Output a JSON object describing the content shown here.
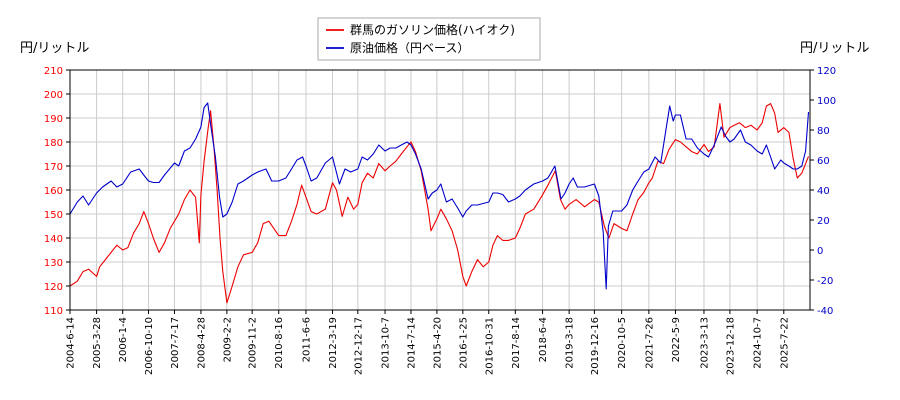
{
  "chart_data": {
    "type": "line",
    "title": "",
    "left_axis": {
      "unit_label": "円/リットル",
      "ylim": [
        110,
        210
      ],
      "ticks": [
        110,
        120,
        130,
        140,
        150,
        160,
        170,
        180,
        190,
        200,
        210
      ],
      "tick_color": "#ff0000"
    },
    "right_axis": {
      "unit_label": "円/リットル",
      "ylim": [
        -40,
        120
      ],
      "ticks": [
        -40,
        -20,
        0,
        20,
        40,
        60,
        80,
        100,
        120
      ],
      "tick_color": "#0000cc"
    },
    "x_ticks": [
      "2004-6-14",
      "2005-3-28",
      "2006-1-4",
      "2006-10-10",
      "2007-7-17",
      "2008-4-28",
      "2009-2-2",
      "2009-11-2",
      "2010-8-16",
      "2011-6-6",
      "2012-3-19",
      "2012-12-17",
      "2013-10-7",
      "2014-7-14",
      "2015-4-20",
      "2016-1-25",
      "2016-10-31",
      "2017-8-14",
      "2018-6-4",
      "2019-3-18",
      "2019-12-16",
      "2020-10-5",
      "2021-7-26",
      "2022-5-9",
      "2023-3-13",
      "2023-12-18",
      "2024-10-7",
      "2025-7-22"
    ],
    "x_range": [
      "2004-06-14",
      "2026-05-01"
    ],
    "grid": true,
    "legend_position": "top-center",
    "series": [
      {
        "name": "群馬のガソリン価格(ハイオク)",
        "color": "#ee0000",
        "axis": "left",
        "points": [
          [
            "2004-06-14",
            120
          ],
          [
            "2004-09-01",
            122
          ],
          [
            "2004-11-01",
            126
          ],
          [
            "2005-01-01",
            127
          ],
          [
            "2005-03-28",
            124
          ],
          [
            "2005-05-01",
            128
          ],
          [
            "2005-07-01",
            131
          ],
          [
            "2005-09-01",
            134
          ],
          [
            "2005-11-01",
            137
          ],
          [
            "2006-01-04",
            135
          ],
          [
            "2006-03-01",
            136
          ],
          [
            "2006-05-01",
            142
          ],
          [
            "2006-07-01",
            146
          ],
          [
            "2006-08-20",
            151
          ],
          [
            "2006-10-10",
            146
          ],
          [
            "2006-12-01",
            140
          ],
          [
            "2007-02-01",
            134
          ],
          [
            "2007-04-01",
            138
          ],
          [
            "2007-06-01",
            144
          ],
          [
            "2007-07-17",
            147
          ],
          [
            "2007-09-01",
            150
          ],
          [
            "2007-11-01",
            156
          ],
          [
            "2008-01-01",
            160
          ],
          [
            "2008-03-01",
            157
          ],
          [
            "2008-04-10",
            138
          ],
          [
            "2008-04-28",
            158
          ],
          [
            "2008-06-01",
            172
          ],
          [
            "2008-07-15",
            186
          ],
          [
            "2008-08-10",
            193
          ],
          [
            "2008-09-15",
            178
          ],
          [
            "2008-10-20",
            160
          ],
          [
            "2008-11-20",
            140
          ],
          [
            "2008-12-20",
            126
          ],
          [
            "2009-02-02",
            113
          ],
          [
            "2009-04-01",
            120
          ],
          [
            "2009-06-01",
            128
          ],
          [
            "2009-08-01",
            133
          ],
          [
            "2009-11-02",
            134
          ],
          [
            "2010-01-01",
            138
          ],
          [
            "2010-03-01",
            146
          ],
          [
            "2010-05-01",
            147
          ],
          [
            "2010-08-16",
            141
          ],
          [
            "2010-11-01",
            141
          ],
          [
            "2011-01-01",
            147
          ],
          [
            "2011-03-01",
            154
          ],
          [
            "2011-04-20",
            162
          ],
          [
            "2011-06-06",
            157
          ],
          [
            "2011-08-01",
            151
          ],
          [
            "2011-10-01",
            150
          ],
          [
            "2012-01-01",
            152
          ],
          [
            "2012-03-19",
            163
          ],
          [
            "2012-05-01",
            160
          ],
          [
            "2012-07-01",
            149
          ],
          [
            "2012-09-01",
            157
          ],
          [
            "2012-11-01",
            152
          ],
          [
            "2012-12-17",
            154
          ],
          [
            "2013-02-01",
            163
          ],
          [
            "2013-04-01",
            167
          ],
          [
            "2013-06-01",
            165
          ],
          [
            "2013-08-01",
            171
          ],
          [
            "2013-10-07",
            168
          ],
          [
            "2013-12-01",
            170
          ],
          [
            "2014-02-01",
            172
          ],
          [
            "2014-04-01",
            175
          ],
          [
            "2014-06-01",
            178
          ],
          [
            "2014-07-14",
            180
          ],
          [
            "2014-09-01",
            176
          ],
          [
            "2014-11-01",
            168
          ],
          [
            "2015-01-15",
            152
          ],
          [
            "2015-02-15",
            143
          ],
          [
            "2015-04-20",
            148
          ],
          [
            "2015-06-01",
            152
          ],
          [
            "2015-08-01",
            148
          ],
          [
            "2015-10-01",
            143
          ],
          [
            "2015-12-01",
            135
          ],
          [
            "2016-01-25",
            124
          ],
          [
            "2016-03-01",
            120
          ],
          [
            "2016-05-01",
            126
          ],
          [
            "2016-07-01",
            131
          ],
          [
            "2016-09-01",
            128
          ],
          [
            "2016-10-31",
            130
          ],
          [
            "2016-12-15",
            137
          ],
          [
            "2017-02-01",
            141
          ],
          [
            "2017-04-01",
            139
          ],
          [
            "2017-06-01",
            139
          ],
          [
            "2017-08-14",
            140
          ],
          [
            "2017-10-01",
            144
          ],
          [
            "2017-12-01",
            150
          ],
          [
            "2018-03-01",
            152
          ],
          [
            "2018-06-04",
            158
          ],
          [
            "2018-08-01",
            162
          ],
          [
            "2018-10-20",
            168
          ],
          [
            "2018-12-15",
            156
          ],
          [
            "2019-02-01",
            152
          ],
          [
            "2019-03-18",
            154
          ],
          [
            "2019-06-01",
            156
          ],
          [
            "2019-09-01",
            153
          ],
          [
            "2019-12-16",
            156
          ],
          [
            "2020-02-01",
            155
          ],
          [
            "2020-04-01",
            145
          ],
          [
            "2020-05-20",
            140
          ],
          [
            "2020-07-15",
            146
          ],
          [
            "2020-10-05",
            144
          ],
          [
            "2020-12-01",
            143
          ],
          [
            "2021-02-01",
            150
          ],
          [
            "2021-04-01",
            156
          ],
          [
            "2021-06-01",
            159
          ],
          [
            "2021-07-26",
            163
          ],
          [
            "2021-09-01",
            165
          ],
          [
            "2021-11-01",
            172
          ],
          [
            "2022-01-01",
            171
          ],
          [
            "2022-03-01",
            177
          ],
          [
            "2022-05-09",
            181
          ],
          [
            "2022-07-01",
            180
          ],
          [
            "2022-09-01",
            178
          ],
          [
            "2022-11-01",
            176
          ],
          [
            "2023-01-01",
            175
          ],
          [
            "2023-03-13",
            179
          ],
          [
            "2023-05-01",
            176
          ],
          [
            "2023-07-01",
            178
          ],
          [
            "2023-09-01",
            196
          ],
          [
            "2023-10-15",
            182
          ],
          [
            "2023-12-18",
            186
          ],
          [
            "2024-02-01",
            187
          ],
          [
            "2024-04-01",
            188
          ],
          [
            "2024-06-01",
            186
          ],
          [
            "2024-08-01",
            187
          ],
          [
            "2024-10-07",
            185
          ],
          [
            "2024-12-01",
            188
          ],
          [
            "2025-01-15",
            195
          ],
          [
            "2025-03-01",
            196
          ],
          [
            "2025-04-15",
            192
          ],
          [
            "2025-05-20",
            184
          ],
          [
            "2025-07-22",
            186
          ],
          [
            "2025-09-15",
            184
          ],
          [
            "2025-11-01",
            173
          ],
          [
            "2025-12-15",
            165
          ],
          [
            "2026-02-01",
            167
          ],
          [
            "2026-04-15",
            174
          ]
        ]
      },
      {
        "name": "原油価格（円ベース）",
        "color": "#0000cc",
        "axis": "right",
        "points": [
          [
            "2004-06-14",
            24
          ],
          [
            "2004-09-01",
            32
          ],
          [
            "2004-11-01",
            36
          ],
          [
            "2005-01-01",
            30
          ],
          [
            "2005-03-28",
            38
          ],
          [
            "2005-06-01",
            42
          ],
          [
            "2005-09-01",
            46
          ],
          [
            "2005-11-01",
            42
          ],
          [
            "2006-01-04",
            44
          ],
          [
            "2006-04-01",
            52
          ],
          [
            "2006-07-01",
            54
          ],
          [
            "2006-09-01",
            49
          ],
          [
            "2006-10-10",
            46
          ],
          [
            "2006-12-01",
            45
          ],
          [
            "2007-02-01",
            45
          ],
          [
            "2007-04-01",
            50
          ],
          [
            "2007-07-17",
            58
          ],
          [
            "2007-09-01",
            56
          ],
          [
            "2007-11-01",
            66
          ],
          [
            "2008-01-01",
            68
          ],
          [
            "2008-03-01",
            74
          ],
          [
            "2008-04-28",
            82
          ],
          [
            "2008-06-01",
            95
          ],
          [
            "2008-07-10",
            98
          ],
          [
            "2008-08-15",
            82
          ],
          [
            "2008-10-01",
            62
          ],
          [
            "2008-11-15",
            35
          ],
          [
            "2008-12-20",
            22
          ],
          [
            "2009-02-02",
            24
          ],
          [
            "2009-04-01",
            32
          ],
          [
            "2009-06-01",
            44
          ],
          [
            "2009-08-01",
            46
          ],
          [
            "2009-11-02",
            50
          ],
          [
            "2010-01-01",
            52
          ],
          [
            "2010-04-01",
            54
          ],
          [
            "2010-06-01",
            46
          ],
          [
            "2010-08-16",
            46
          ],
          [
            "2010-11-01",
            48
          ],
          [
            "2011-01-01",
            54
          ],
          [
            "2011-03-01",
            60
          ],
          [
            "2011-05-01",
            62
          ],
          [
            "2011-06-06",
            56
          ],
          [
            "2011-08-01",
            46
          ],
          [
            "2011-10-01",
            48
          ],
          [
            "2012-01-01",
            58
          ],
          [
            "2012-03-19",
            62
          ],
          [
            "2012-06-01",
            44
          ],
          [
            "2012-08-01",
            54
          ],
          [
            "2012-10-01",
            52
          ],
          [
            "2012-12-17",
            54
          ],
          [
            "2013-02-01",
            62
          ],
          [
            "2013-04-01",
            60
          ],
          [
            "2013-06-01",
            64
          ],
          [
            "2013-08-01",
            70
          ],
          [
            "2013-10-07",
            66
          ],
          [
            "2013-12-01",
            68
          ],
          [
            "2014-02-01",
            68
          ],
          [
            "2014-04-01",
            70
          ],
          [
            "2014-06-01",
            72
          ],
          [
            "2014-07-14",
            70
          ],
          [
            "2014-09-01",
            64
          ],
          [
            "2014-11-01",
            54
          ],
          [
            "2015-01-15",
            34
          ],
          [
            "2015-03-01",
            38
          ],
          [
            "2015-04-20",
            40
          ],
          [
            "2015-06-01",
            44
          ],
          [
            "2015-08-01",
            32
          ],
          [
            "2015-10-01",
            34
          ],
          [
            "2015-12-01",
            28
          ],
          [
            "2016-01-25",
            22
          ],
          [
            "2016-03-01",
            26
          ],
          [
            "2016-05-01",
            30
          ],
          [
            "2016-07-01",
            30
          ],
          [
            "2016-10-31",
            32
          ],
          [
            "2016-12-15",
            38
          ],
          [
            "2017-02-01",
            38
          ],
          [
            "2017-04-01",
            37
          ],
          [
            "2017-06-01",
            32
          ],
          [
            "2017-08-14",
            34
          ],
          [
            "2017-10-01",
            36
          ],
          [
            "2017-12-01",
            40
          ],
          [
            "2018-03-01",
            44
          ],
          [
            "2018-06-04",
            46
          ],
          [
            "2018-08-01",
            48
          ],
          [
            "2018-10-15",
            56
          ],
          [
            "2018-12-20",
            34
          ],
          [
            "2019-02-01",
            38
          ],
          [
            "2019-03-18",
            44
          ],
          [
            "2019-05-01",
            48
          ],
          [
            "2019-06-15",
            42
          ],
          [
            "2019-09-01",
            42
          ],
          [
            "2019-12-16",
            44
          ],
          [
            "2020-02-01",
            36
          ],
          [
            "2020-03-20",
            12
          ],
          [
            "2020-04-21",
            -26
          ],
          [
            "2020-05-15",
            16
          ],
          [
            "2020-07-01",
            26
          ],
          [
            "2020-10-05",
            26
          ],
          [
            "2020-12-01",
            30
          ],
          [
            "2021-02-01",
            40
          ],
          [
            "2021-04-01",
            46
          ],
          [
            "2021-06-01",
            52
          ],
          [
            "2021-07-26",
            54
          ],
          [
            "2021-10-01",
            62
          ],
          [
            "2021-12-01",
            58
          ],
          [
            "2022-03-08",
            96
          ],
          [
            "2022-04-15",
            86
          ],
          [
            "2022-05-09",
            90
          ],
          [
            "2022-07-01",
            90
          ],
          [
            "2022-09-01",
            74
          ],
          [
            "2022-11-01",
            74
          ],
          [
            "2023-01-01",
            68
          ],
          [
            "2023-03-13",
            64
          ],
          [
            "2023-05-01",
            62
          ],
          [
            "2023-07-01",
            70
          ],
          [
            "2023-09-15",
            82
          ],
          [
            "2023-11-01",
            76
          ],
          [
            "2023-12-18",
            72
          ],
          [
            "2024-02-01",
            74
          ],
          [
            "2024-04-10",
            80
          ],
          [
            "2024-06-01",
            72
          ],
          [
            "2024-08-01",
            70
          ],
          [
            "2024-10-07",
            66
          ],
          [
            "2024-12-01",
            64
          ],
          [
            "2025-01-15",
            70
          ],
          [
            "2025-03-01",
            62
          ],
          [
            "2025-04-15",
            54
          ],
          [
            "2025-06-20",
            60
          ],
          [
            "2025-07-22",
            58
          ],
          [
            "2025-09-15",
            56
          ],
          [
            "2025-11-01",
            54
          ],
          [
            "2025-12-15",
            54
          ],
          [
            "2026-02-01",
            56
          ],
          [
            "2026-03-15",
            66
          ],
          [
            "2026-04-15",
            92
          ]
        ]
      }
    ]
  }
}
